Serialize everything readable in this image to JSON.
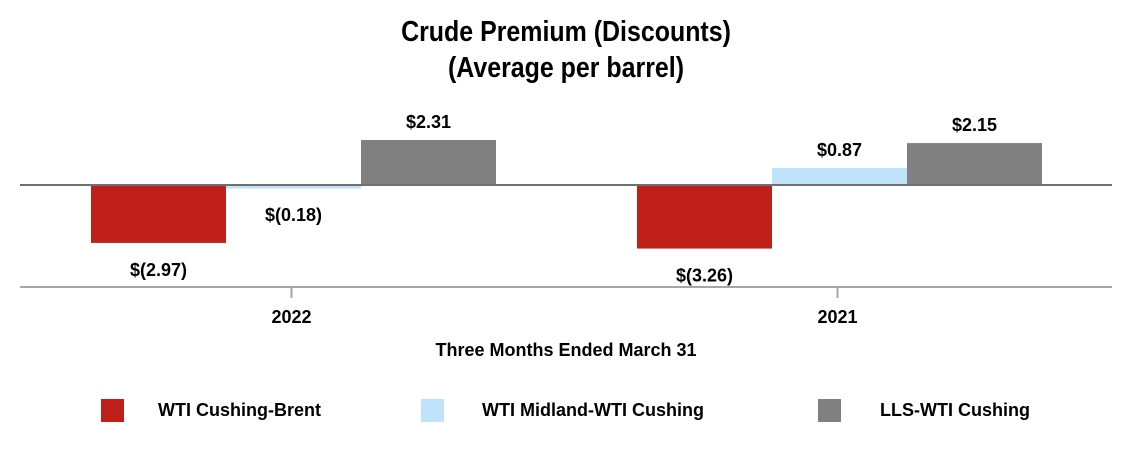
{
  "chart_data": {
    "type": "bar",
    "title": "Crude Premium (Discounts)",
    "subtitle": "(Average per barrel)",
    "xlabel": "Three Months Ended March 31",
    "ylabel": "",
    "categories": [
      "2022",
      "2021"
    ],
    "series": [
      {
        "name": "WTI Cushing-Brent",
        "values": [
          -2.97,
          -3.26
        ],
        "labels": [
          "$(2.97)",
          "$(3.26)"
        ],
        "color": "#c0201a"
      },
      {
        "name": "WTI Midland-WTI Cushing",
        "values": [
          -0.18,
          0.87
        ],
        "labels": [
          "$(0.18)",
          "$0.87"
        ],
        "color": "#bfe3fb"
      },
      {
        "name": "LLS-WTI Cushing",
        "values": [
          2.31,
          2.15
        ],
        "labels": [
          "$2.31",
          "$2.15"
        ],
        "color": "#808080"
      }
    ],
    "grid": false,
    "legend_position": "bottom"
  }
}
